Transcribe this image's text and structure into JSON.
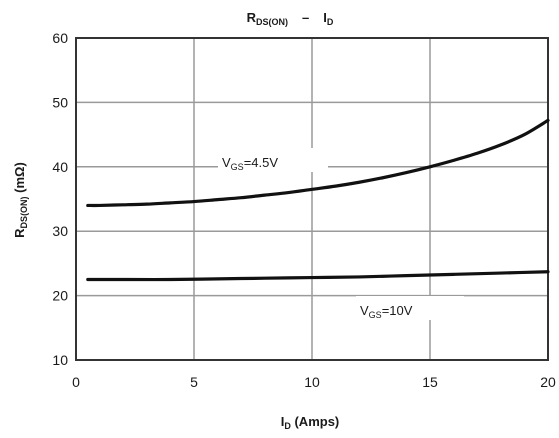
{
  "chart_data": {
    "type": "line",
    "title": {
      "main": "R",
      "sub": "DS(ON)",
      "sep": "–",
      "main2": "I",
      "sub2": "D"
    },
    "xlabel": {
      "main": "I",
      "sub": "D",
      "rest": " (Amps)"
    },
    "ylabel": {
      "main": "R",
      "sub": "DS(ON)",
      "rest": " (mΩ)"
    },
    "xlim": [
      0,
      20
    ],
    "ylim": [
      10,
      60
    ],
    "xticks": [
      "0",
      "5",
      "10",
      "15",
      "20"
    ],
    "yticks": [
      "10",
      "20",
      "30",
      "40",
      "50",
      "60"
    ],
    "grid": true,
    "series": [
      {
        "label": {
          "main": "V",
          "sub": "GS",
          "rest": "=4.5V"
        },
        "x": [
          0.5,
          1,
          2,
          3,
          4,
          5,
          6,
          7,
          8,
          9,
          10,
          11,
          12,
          13,
          14,
          15,
          16,
          17,
          18,
          19,
          20
        ],
        "values": [
          34.0,
          34.0,
          34.1,
          34.2,
          34.4,
          34.6,
          34.9,
          35.2,
          35.6,
          36.0,
          36.5,
          37.0,
          37.6,
          38.3,
          39.1,
          40.0,
          41.0,
          42.1,
          43.4,
          45.0,
          47.2
        ]
      },
      {
        "label": {
          "main": "V",
          "sub": "GS",
          "rest": "=10V"
        },
        "x": [
          0.5,
          2,
          4,
          6,
          8,
          10,
          12,
          14,
          16,
          18,
          20
        ],
        "values": [
          22.5,
          22.5,
          22.5,
          22.6,
          22.7,
          22.8,
          22.9,
          23.1,
          23.3,
          23.5,
          23.7
        ]
      }
    ]
  }
}
